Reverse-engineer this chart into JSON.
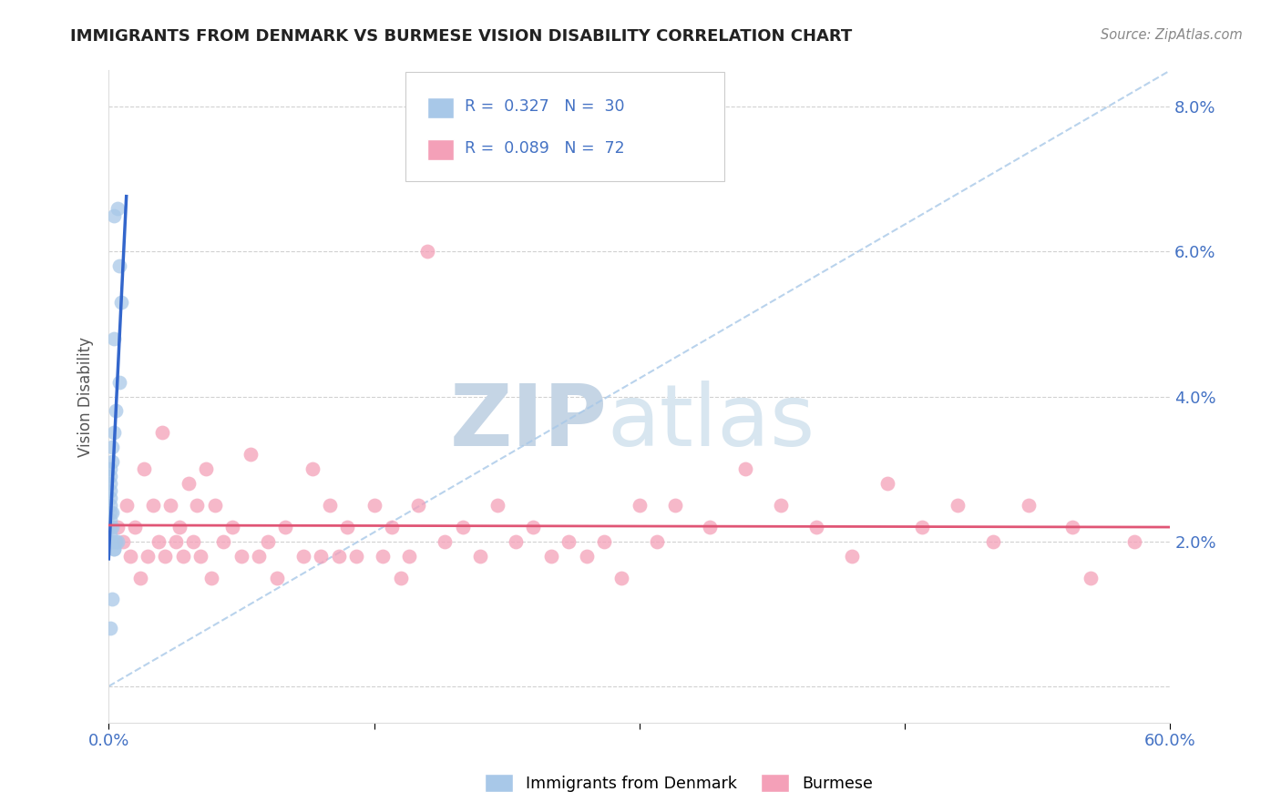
{
  "title": "IMMIGRANTS FROM DENMARK VS BURMESE VISION DISABILITY CORRELATION CHART",
  "source": "Source: ZipAtlas.com",
  "ylabel": "Vision Disability",
  "xlim": [
    0.0,
    0.6
  ],
  "ylim": [
    -0.005,
    0.085
  ],
  "xticks": [
    0.0,
    0.15,
    0.3,
    0.45,
    0.6
  ],
  "xtick_labels": [
    "0.0%",
    "",
    "",
    "",
    "60.0%"
  ],
  "yticks_right": [
    0.0,
    0.02,
    0.04,
    0.06,
    0.08
  ],
  "ytick_labels_right": [
    "",
    "2.0%",
    "4.0%",
    "6.0%",
    "8.0%"
  ],
  "legend1_R": "0.327",
  "legend1_N": "30",
  "legend2_R": "0.089",
  "legend2_N": "72",
  "blue_color": "#a8c8e8",
  "pink_color": "#f4a0b8",
  "blue_line_color": "#3366cc",
  "pink_line_color": "#e05575",
  "title_color": "#222222",
  "axis_label_color": "#555555",
  "tick_color": "#4472c4",
  "watermark_zip_color": "#c8d8e8",
  "watermark_atlas_color": "#d8e4f0",
  "grid_color": "#cccccc",
  "background_color": "#ffffff",
  "blue_x": [
    0.001,
    0.001,
    0.001,
    0.001,
    0.001,
    0.001,
    0.001,
    0.001,
    0.001,
    0.001,
    0.001,
    0.002,
    0.002,
    0.002,
    0.002,
    0.002,
    0.003,
    0.003,
    0.003,
    0.003,
    0.004,
    0.004,
    0.005,
    0.005,
    0.006,
    0.006,
    0.007,
    0.001,
    0.002,
    0.003
  ],
  "blue_y": [
    0.02,
    0.021,
    0.022,
    0.023,
    0.024,
    0.025,
    0.026,
    0.027,
    0.028,
    0.029,
    0.03,
    0.02,
    0.022,
    0.024,
    0.031,
    0.033,
    0.019,
    0.035,
    0.048,
    0.065,
    0.02,
    0.038,
    0.02,
    0.066,
    0.058,
    0.042,
    0.053,
    0.008,
    0.012,
    0.019
  ],
  "pink_x": [
    0.005,
    0.008,
    0.01,
    0.012,
    0.015,
    0.018,
    0.02,
    0.022,
    0.025,
    0.028,
    0.03,
    0.032,
    0.035,
    0.038,
    0.04,
    0.042,
    0.045,
    0.048,
    0.05,
    0.052,
    0.055,
    0.058,
    0.06,
    0.065,
    0.07,
    0.075,
    0.08,
    0.085,
    0.09,
    0.095,
    0.1,
    0.11,
    0.115,
    0.12,
    0.125,
    0.13,
    0.135,
    0.14,
    0.15,
    0.155,
    0.16,
    0.165,
    0.17,
    0.175,
    0.18,
    0.19,
    0.2,
    0.21,
    0.22,
    0.23,
    0.24,
    0.25,
    0.26,
    0.27,
    0.28,
    0.29,
    0.3,
    0.31,
    0.32,
    0.34,
    0.36,
    0.38,
    0.4,
    0.42,
    0.44,
    0.46,
    0.48,
    0.5,
    0.52,
    0.545,
    0.555,
    0.58
  ],
  "pink_y": [
    0.022,
    0.02,
    0.025,
    0.018,
    0.022,
    0.015,
    0.03,
    0.018,
    0.025,
    0.02,
    0.035,
    0.018,
    0.025,
    0.02,
    0.022,
    0.018,
    0.028,
    0.02,
    0.025,
    0.018,
    0.03,
    0.015,
    0.025,
    0.02,
    0.022,
    0.018,
    0.032,
    0.018,
    0.02,
    0.015,
    0.022,
    0.018,
    0.03,
    0.018,
    0.025,
    0.018,
    0.022,
    0.018,
    0.025,
    0.018,
    0.022,
    0.015,
    0.018,
    0.025,
    0.06,
    0.02,
    0.022,
    0.018,
    0.025,
    0.02,
    0.022,
    0.018,
    0.02,
    0.018,
    0.02,
    0.015,
    0.025,
    0.02,
    0.025,
    0.022,
    0.03,
    0.025,
    0.022,
    0.018,
    0.028,
    0.022,
    0.025,
    0.02,
    0.025,
    0.022,
    0.015,
    0.02
  ]
}
